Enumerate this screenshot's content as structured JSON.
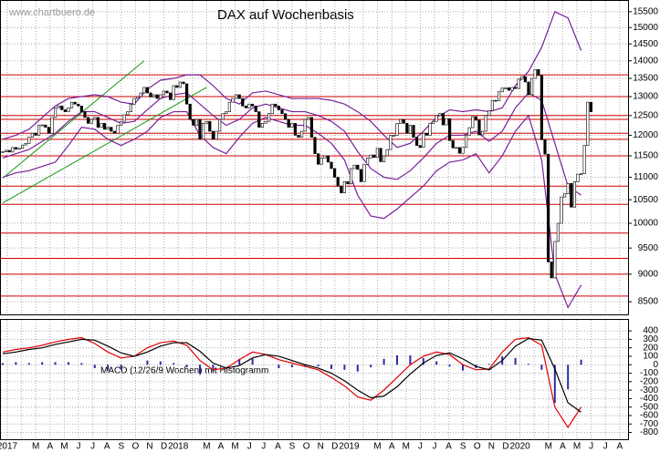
{
  "chart_data": [
    {
      "type": "candlestick",
      "title": "DAX auf Wochenbasis",
      "watermark": "www.chartbuero.de",
      "log_scale": true,
      "grid": true,
      "ylim": [
        8280,
        15850
      ],
      "yticks": [
        8500,
        9000,
        9500,
        10000,
        10500,
        11000,
        11500,
        12000,
        12500,
        13000,
        13500,
        14000,
        14500,
        15000,
        15500
      ],
      "closes": [
        11600,
        11630,
        11590,
        11700,
        11660,
        11680,
        11760,
        11800,
        11950,
        12050,
        12000,
        12250,
        12260,
        12200,
        12050,
        12450,
        12700,
        12750,
        12650,
        12600,
        12700,
        12850,
        12800,
        12750,
        12600,
        12450,
        12300,
        12400,
        12450,
        12200,
        12300,
        12150,
        12200,
        12100,
        12050,
        12250,
        12350,
        12520,
        12600,
        12800,
        12950,
        13000,
        13100,
        13250,
        13100,
        12990,
        13050,
        12950,
        13050,
        13150,
        13100,
        12920,
        13300,
        13250,
        13400,
        13350,
        12800,
        12400,
        12250,
        12400,
        11900,
        12300,
        12350,
        12100,
        11900,
        12100,
        12400,
        12550,
        12600,
        12850,
        12950,
        13050,
        12950,
        12750,
        12700,
        12800,
        12750,
        12600,
        12200,
        12300,
        12350,
        12550,
        12800,
        12750,
        12650,
        12550,
        12400,
        12200,
        12300,
        12000,
        11950,
        12100,
        12400,
        12450,
        11950,
        11550,
        11300,
        11450,
        11500,
        11350,
        11200,
        11000,
        10800,
        10650,
        10900,
        10850,
        11200,
        11280,
        11180,
        10900,
        11300,
        11450,
        11520,
        11460,
        11680,
        11360,
        11500,
        11650,
        12000,
        12000,
        12300,
        12400,
        12300,
        12050,
        12250,
        11950,
        11750,
        11700,
        12050,
        12000,
        12300,
        12350,
        12500,
        12550,
        12260,
        12420,
        11870,
        11690,
        11700,
        11560,
        11700,
        12000,
        12190,
        12470,
        12380,
        12010,
        12100,
        12500,
        12630,
        12900,
        12890,
        13130,
        13230,
        13240,
        13170,
        13250,
        13220,
        13480,
        13550,
        13400,
        13050,
        13500,
        13750,
        13580,
        11890,
        11540,
        9230,
        8930,
        9630,
        10000,
        10560,
        10630,
        10860,
        10340,
        10900,
        11070,
        11080,
        11750,
        12850,
        12600
      ],
      "up_color": "#ffffff",
      "down_color": "#000000",
      "levels": [
        13600,
        13000,
        12500,
        12400,
        12050,
        11900,
        11500,
        10800,
        10400,
        9800,
        9300,
        9000,
        8600
      ],
      "level_color": "#d00000",
      "trendlines": [
        {
          "x": [
            0,
            43
          ],
          "y": [
            10980,
            14000
          ]
        },
        {
          "x": [
            0,
            62
          ],
          "y": [
            10430,
            13250
          ]
        }
      ],
      "trend_color": "#119911",
      "band_x": [
        0,
        4,
        8,
        12,
        16,
        20,
        24,
        28,
        32,
        36,
        40,
        44,
        48,
        52,
        56,
        60,
        64,
        68,
        72,
        76,
        80,
        84,
        88,
        92,
        96,
        100,
        104,
        108,
        112,
        116,
        120,
        124,
        128,
        132,
        136,
        140,
        144,
        148,
        152,
        156,
        160,
        164,
        168,
        172,
        176
      ],
      "bands": {
        "color": "#7a1f9a",
        "upper": [
          11900,
          12000,
          12150,
          12450,
          12750,
          12950,
          13000,
          13050,
          13000,
          12850,
          12800,
          13200,
          13450,
          13500,
          13600,
          13600,
          13300,
          12950,
          12800,
          13100,
          13150,
          13050,
          12950,
          12950,
          12950,
          12900,
          12800,
          12600,
          12350,
          12000,
          11700,
          11800,
          12100,
          12450,
          12650,
          12600,
          12650,
          12600,
          12700,
          13300,
          13700,
          14400,
          15500,
          15300,
          14300
        ],
        "middle": [
          11450,
          11550,
          11650,
          11850,
          12050,
          12350,
          12600,
          12600,
          12450,
          12300,
          12350,
          12650,
          12950,
          13050,
          13100,
          12800,
          12500,
          12250,
          12400,
          12700,
          12800,
          12700,
          12600,
          12600,
          12500,
          12350,
          12100,
          11600,
          11200,
          11000,
          10950,
          11150,
          11450,
          11800,
          12000,
          12000,
          12100,
          11850,
          12100,
          12700,
          13100,
          12900,
          11800,
          10800,
          10600
        ],
        "lower": [
          11000,
          11100,
          11150,
          11250,
          11350,
          11750,
          12200,
          12150,
          11900,
          11750,
          11900,
          12100,
          12450,
          12600,
          12600,
          12000,
          11700,
          11550,
          11950,
          12300,
          12450,
          12350,
          12250,
          12250,
          12050,
          11800,
          11400,
          10600,
          10150,
          10100,
          10300,
          10550,
          10800,
          11150,
          11350,
          11400,
          11550,
          11100,
          11500,
          12100,
          12500,
          11400,
          9000,
          8400,
          8800
        ]
      }
    },
    {
      "type": "macd",
      "label": "MACD (12/26/9 Wochen) mit Histogramm",
      "grid": true,
      "ylim": [
        -880,
        530
      ],
      "yticks": [
        400,
        300,
        200,
        100,
        0,
        -100,
        -200,
        -300,
        -400,
        -500,
        -600,
        -700,
        -800
      ],
      "x": [
        0,
        4,
        8,
        12,
        16,
        20,
        24,
        28,
        32,
        36,
        40,
        44,
        48,
        52,
        56,
        60,
        64,
        68,
        72,
        76,
        80,
        84,
        88,
        92,
        96,
        100,
        104,
        108,
        112,
        116,
        120,
        124,
        128,
        132,
        136,
        140,
        144,
        148,
        152,
        156,
        160,
        164,
        168,
        172,
        176
      ],
      "series": [
        {
          "name": "MACD",
          "color": "#e00000",
          "values": [
            150,
            180,
            200,
            230,
            270,
            300,
            320,
            250,
            150,
            80,
            100,
            200,
            260,
            280,
            230,
            50,
            -60,
            -40,
            60,
            150,
            120,
            60,
            20,
            -20,
            -60,
            -150,
            -250,
            -380,
            -420,
            -300,
            -150,
            0,
            100,
            150,
            120,
            0,
            -60,
            -50,
            150,
            300,
            320,
            230,
            -500,
            -740,
            -500
          ]
        },
        {
          "name": "Signal",
          "color": "#000000",
          "values": [
            130,
            150,
            180,
            200,
            240,
            270,
            300,
            290,
            220,
            140,
            100,
            150,
            220,
            260,
            260,
            160,
            20,
            -40,
            -10,
            80,
            120,
            100,
            50,
            0,
            -40,
            -100,
            -190,
            -300,
            -390,
            -370,
            -260,
            -110,
            20,
            110,
            140,
            70,
            -20,
            -60,
            50,
            220,
            310,
            290,
            -50,
            -450,
            -560
          ]
        }
      ],
      "histogram": {
        "color": "#2a2aa8",
        "values": [
          20,
          30,
          20,
          30,
          30,
          30,
          20,
          -40,
          -70,
          -60,
          0,
          50,
          40,
          20,
          -30,
          -110,
          -80,
          0,
          70,
          70,
          0,
          -40,
          -30,
          -20,
          -20,
          -50,
          -60,
          -80,
          -30,
          70,
          110,
          110,
          80,
          40,
          -20,
          -70,
          -40,
          10,
          100,
          80,
          10,
          -60,
          -450,
          -290,
          60
        ]
      },
      "categories": [
        "2017",
        null,
        "M",
        "A",
        "M",
        "J",
        "J",
        "A",
        "S",
        "O",
        "N",
        "D",
        "2018",
        null,
        "M",
        "A",
        "M",
        "J",
        "J",
        "A",
        "S",
        "O",
        "N",
        "D",
        "2019",
        null,
        "M",
        "A",
        "M",
        "J",
        "J",
        "A",
        "S",
        "O",
        "N",
        "D",
        "2020",
        null,
        "M",
        "A",
        "M",
        "J",
        "J",
        "A"
      ]
    }
  ]
}
